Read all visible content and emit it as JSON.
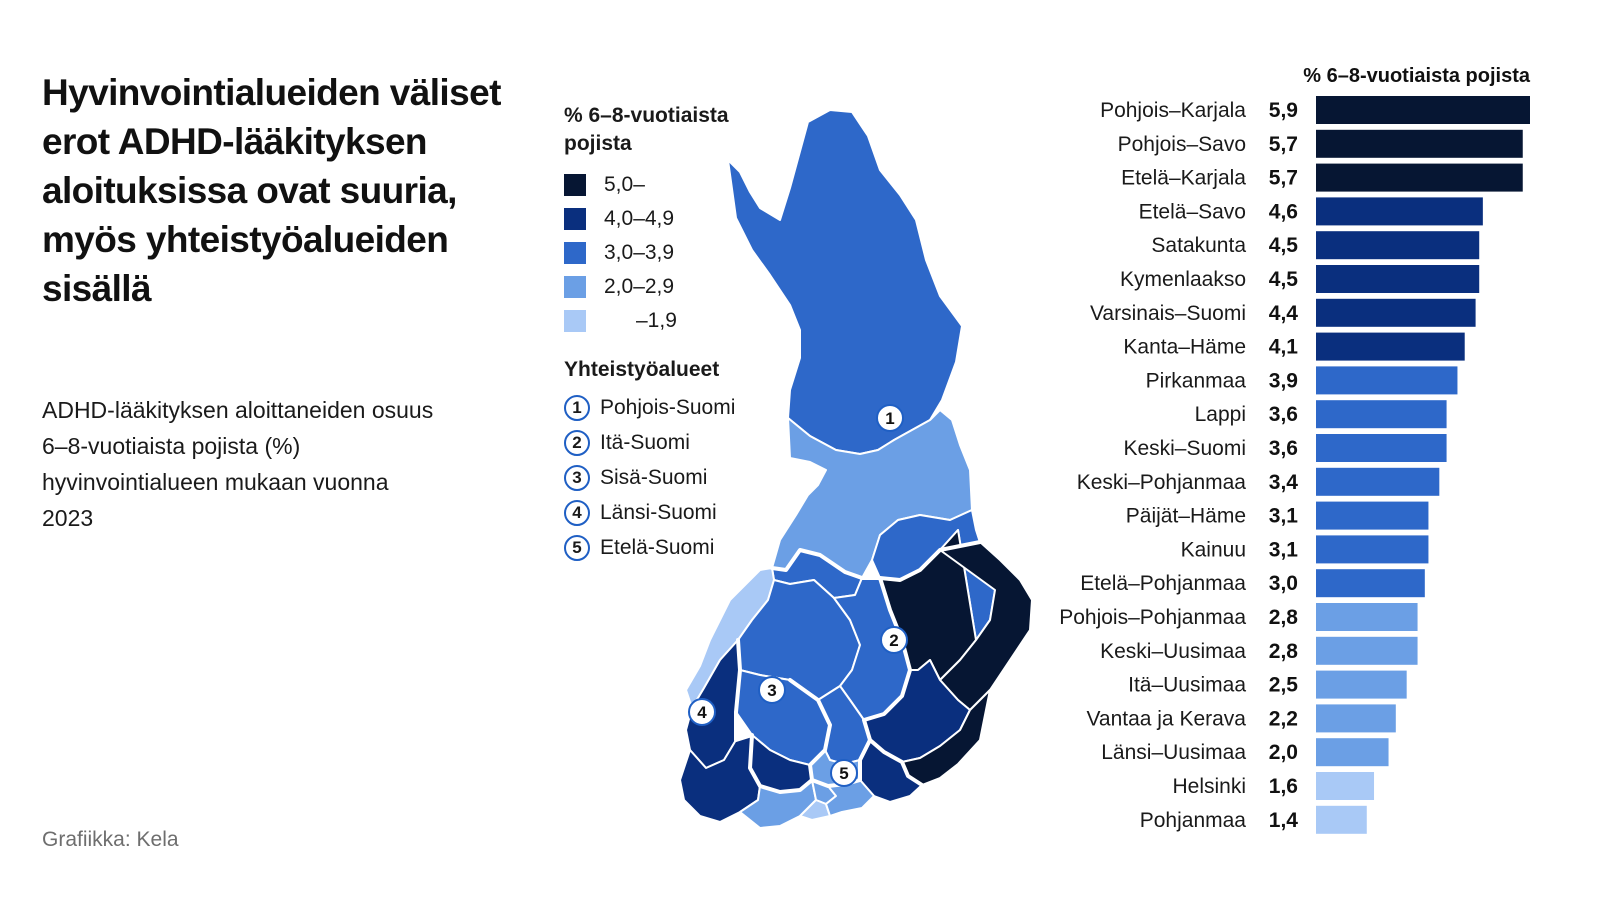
{
  "title": "Hyvinvointialueiden väliset erot ADHD-lääkityksen aloituksissa ovat suuria, myös yhteistyöalueiden sisällä",
  "subtitle": "ADHD-lääkityksen aloittaneiden osuus 6–8-vuotiaista pojista (%) hyvinvointialueen mukaan vuonna 2023",
  "credit": "Grafiikka: Kela",
  "colors": {
    "c5": "#061633",
    "c4": "#0a2f7e",
    "c3": "#2e68c9",
    "c2": "#6b9fe5",
    "c1": "#a9c9f6"
  },
  "legend": {
    "title": "% 6–8-vuotiaista pojista",
    "classes": [
      {
        "label": "5,0–",
        "color": "#061633"
      },
      {
        "label": "4,0–4,9",
        "color": "#0a2f7e"
      },
      {
        "label": "3,0–3,9",
        "color": "#2e68c9"
      },
      {
        "label": "2,0–2,9",
        "color": "#6b9fe5"
      },
      {
        "label": "–1,9",
        "color": "#a9c9f6"
      }
    ]
  },
  "cooperation": {
    "title": "Yhteistyöalueet",
    "areas": [
      {
        "num": "1",
        "name": "Pohjois-Suomi"
      },
      {
        "num": "2",
        "name": "Itä-Suomi"
      },
      {
        "num": "3",
        "name": "Sisä-Suomi"
      },
      {
        "num": "4",
        "name": "Länsi-Suomi"
      },
      {
        "num": "5",
        "name": "Etelä-Suomi"
      }
    ]
  },
  "chart_data": {
    "type": "bar",
    "title": "% 6–8-vuotiaista pojista",
    "orientation": "horizontal",
    "categories": [
      "Pohjois–Karjala",
      "Pohjois–Savo",
      "Etelä–Karjala",
      "Etelä–Savo",
      "Satakunta",
      "Kymenlaakso",
      "Varsinais–Suomi",
      "Kanta–Häme",
      "Pirkanmaa",
      "Lappi",
      "Keski–Suomi",
      "Keski–Pohjanmaa",
      "Päijät–Häme",
      "Kainuu",
      "Etelä–Pohjanmaa",
      "Pohjois–Pohjanmaa",
      "Keski–Uusimaa",
      "Itä–Uusimaa",
      "Vantaa ja Kerava",
      "Länsi–Uusimaa",
      "Helsinki",
      "Pohjanmaa"
    ],
    "values": [
      5.9,
      5.7,
      5.7,
      4.6,
      4.5,
      4.5,
      4.4,
      4.1,
      3.9,
      3.6,
      3.6,
      3.4,
      3.1,
      3.1,
      3.0,
      2.8,
      2.8,
      2.5,
      2.2,
      2.0,
      1.6,
      1.4
    ],
    "value_labels": [
      "5,9",
      "5,7",
      "5,7",
      "4,6",
      "4,5",
      "4,5",
      "4,4",
      "4,1",
      "3,9",
      "3,6",
      "3,6",
      "3,4",
      "3,1",
      "3,1",
      "3,0",
      "2,8",
      "2,8",
      "2,5",
      "2,2",
      "2,0",
      "1,6",
      "1,4"
    ],
    "xlim": [
      0,
      5.9
    ],
    "grid": false,
    "legend": "none"
  }
}
